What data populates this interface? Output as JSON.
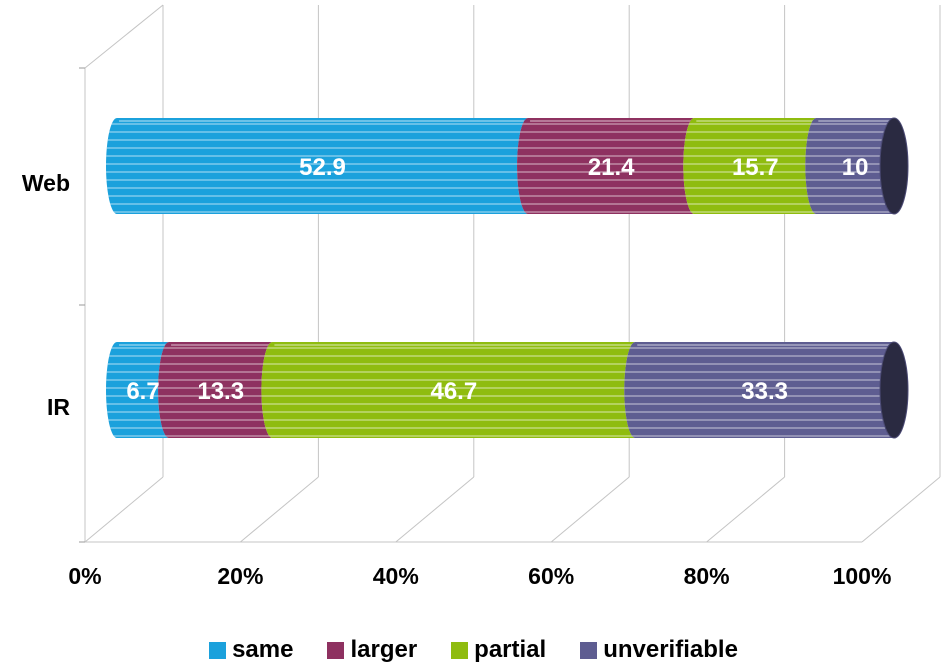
{
  "chart_data": {
    "type": "bar",
    "orientation": "horizontal",
    "stacked": "percent",
    "style": "3d-cylinder",
    "categories": [
      "Web",
      "IR"
    ],
    "series": [
      {
        "name": "same",
        "color": "#1ba1dc",
        "values": [
          52.9,
          6.7
        ]
      },
      {
        "name": "larger",
        "color": "#8e3160",
        "values": [
          21.4,
          13.3
        ]
      },
      {
        "name": "partial",
        "color": "#8fbc0f",
        "values": [
          15.7,
          46.7
        ]
      },
      {
        "name": "unverifiable",
        "color": "#5e5d91",
        "values": [
          10,
          33.3
        ]
      }
    ],
    "data_labels": [
      [
        "52.9",
        "21.4",
        "15.7",
        "10"
      ],
      [
        "6.7",
        "13.3",
        "46.7",
        "33.3"
      ]
    ],
    "xticks": [
      "0%",
      "20%",
      "40%",
      "60%",
      "80%",
      "100%"
    ],
    "xlim": [
      0,
      100
    ],
    "grid": true,
    "legend_position": "bottom"
  }
}
